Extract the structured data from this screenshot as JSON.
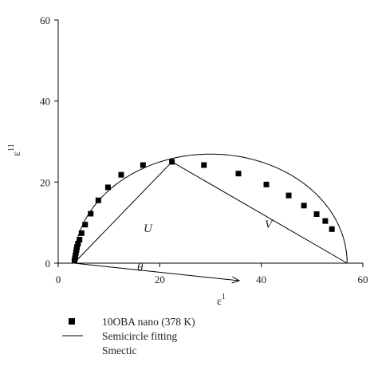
{
  "chart_data": {
    "type": "scatter",
    "xlabel": "ε",
    "xlabel_sup": "1",
    "ylabel": "ε",
    "ylabel_sup": "11",
    "xlim": [
      0,
      60
    ],
    "ylim": [
      0,
      60
    ],
    "xticks": [
      0,
      20,
      40,
      60
    ],
    "yticks": [
      0,
      20,
      40,
      60
    ],
    "grid": false,
    "legend_position": "bottom-left",
    "series": [
      {
        "name": "10OBA nano (378 K)",
        "marker": "square",
        "color": "#000000",
        "x": [
          3.2,
          3.3,
          3.4,
          3.5,
          3.6,
          3.7,
          3.9,
          4.2,
          4.6,
          5.3,
          6.4,
          7.9,
          9.8,
          12.4,
          16.7,
          22.4,
          28.7,
          35.5,
          41.0,
          45.4,
          48.4,
          50.9,
          52.6,
          53.9
        ],
        "y": [
          0.6,
          1.2,
          1.9,
          2.6,
          3.3,
          4.0,
          4.8,
          5.8,
          7.4,
          9.5,
          12.2,
          15.5,
          18.7,
          21.8,
          24.2,
          25.0,
          24.2,
          22.1,
          19.4,
          16.7,
          14.2,
          12.1,
          10.4,
          8.4
        ]
      },
      {
        "name": "Semicircle fitting",
        "type": "line",
        "color": "#000000",
        "center": [
          30.0,
          0
        ],
        "radius": 26.9
      }
    ],
    "legend_entries": [
      "10OBA nano (378 K)",
      "Semicircle fitting",
      "Smectic"
    ],
    "annotations": {
      "u_label": "U",
      "v_label": "V",
      "theta_label": "θ"
    }
  }
}
